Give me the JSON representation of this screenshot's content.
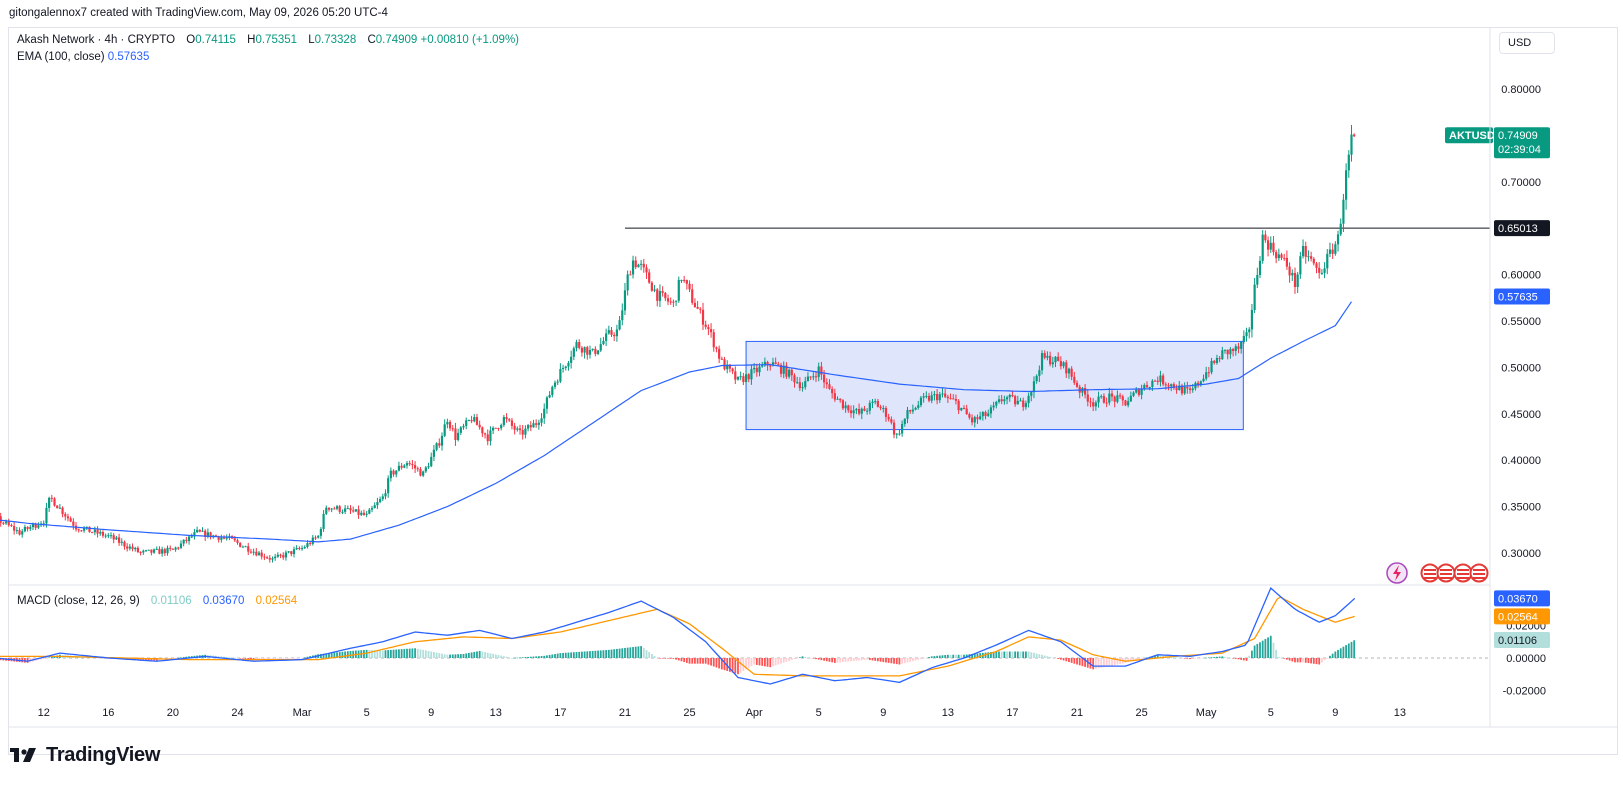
{
  "header": {
    "attribution": "gitongalennox7 created with TradingView.com, May 09, 2026 05:20 UTC-4"
  },
  "legend": {
    "symbol": "Akash Network · 4h · CRYPTO",
    "open_label": "O",
    "open": "0.74115",
    "high_label": "H",
    "high": "0.75351",
    "low_label": "L",
    "low": "0.73328",
    "close_label": "C",
    "close": "0.74909",
    "change": "+0.00810 (+1.09%)",
    "ema_label": "EMA (100, close)",
    "ema_value": "0.57635",
    "macd_label": "MACD (close, 12, 26, 9)",
    "macd_hist": "0.01106",
    "macd_line": "0.03670",
    "macd_signal": "0.02564"
  },
  "currency_button": "USD",
  "price_badges": {
    "ticker": "AKTUSD",
    "last": "0.74909",
    "countdown": "02:39:04",
    "line_level": "0.65013",
    "ema": "0.57635",
    "macd_line": "0.03670",
    "macd_signal": "0.02564",
    "macd_hist": "0.01106"
  },
  "branding": "TradingView",
  "colors": {
    "up": "#089981",
    "down": "#f23645",
    "ema": "#2962ff",
    "signal": "#ff9800",
    "box_fill": "#dbe3fb",
    "box_stroke": "#2962ff",
    "line": "#131722",
    "hist_up_strong": "#26a69a",
    "hist_up_weak": "#b2dfdb",
    "hist_dn_strong": "#ff5252",
    "hist_dn_weak": "#ffcdd2"
  },
  "chart_data": [
    {
      "type": "candlestick",
      "title": "Akash Network · 4h · CRYPTO",
      "y_scale": "linear",
      "ylim": [
        0.27,
        0.81
      ],
      "y_ticks": [
        0.3,
        0.35,
        0.4,
        0.45,
        0.5,
        0.55,
        0.6,
        0.7,
        0.8
      ],
      "y_tick_labels": [
        "0.30000",
        "0.35000",
        "0.40000",
        "0.45000",
        "0.50000",
        "0.55000",
        "0.60000",
        "0.70000",
        "0.80000"
      ],
      "x_tick_labels": [
        "12",
        "16",
        "20",
        "24",
        "Mar",
        "5",
        "9",
        "13",
        "17",
        "21",
        "25",
        "Apr",
        "5",
        "9",
        "13",
        "17",
        "21",
        "25",
        "May",
        "5",
        "9",
        "13"
      ],
      "x_ticks_day": [
        -19,
        -15,
        -11,
        -7,
        -3,
        1,
        5,
        9,
        13,
        17,
        21,
        25,
        29,
        33,
        37,
        41,
        45,
        49,
        53,
        57,
        61,
        65
      ],
      "x_axis_origin_day": "Feb 28 2026",
      "close_keypoints": [
        [
          -30,
          0.312
        ],
        [
          -28.5,
          0.325
        ],
        [
          -26.5,
          0.35
        ],
        [
          -25,
          0.342
        ],
        [
          -22,
          0.338
        ],
        [
          -20.5,
          0.322
        ],
        [
          -19,
          0.335
        ],
        [
          -18.6,
          0.36
        ],
        [
          -17,
          0.328
        ],
        [
          -15,
          0.318
        ],
        [
          -13,
          0.3
        ],
        [
          -11,
          0.303
        ],
        [
          -9.5,
          0.322
        ],
        [
          -7.5,
          0.315
        ],
        [
          -6,
          0.302
        ],
        [
          -4.8,
          0.293
        ],
        [
          -3.5,
          0.302
        ],
        [
          -3,
          0.305
        ],
        [
          -2,
          0.318
        ],
        [
          -1.5,
          0.35
        ],
        [
          0,
          0.345
        ],
        [
          1,
          0.34
        ],
        [
          2,
          0.36
        ],
        [
          2.5,
          0.385
        ],
        [
          3.5,
          0.398
        ],
        [
          4.5,
          0.385
        ],
        [
          5.5,
          0.42
        ],
        [
          6,
          0.445
        ],
        [
          6.5,
          0.425
        ],
        [
          7.5,
          0.445
        ],
        [
          8.5,
          0.425
        ],
        [
          9.5,
          0.445
        ],
        [
          10.5,
          0.428
        ],
        [
          11.5,
          0.44
        ],
        [
          12,
          0.455
        ],
        [
          12.5,
          0.48
        ],
        [
          13,
          0.495
        ],
        [
          13.5,
          0.51
        ],
        [
          14,
          0.525
        ],
        [
          15,
          0.515
        ],
        [
          16,
          0.535
        ],
        [
          16.6,
          0.54
        ],
        [
          17.2,
          0.6
        ],
        [
          17.5,
          0.615
        ],
        [
          18,
          0.608
        ],
        [
          19,
          0.578
        ],
        [
          20,
          0.568
        ],
        [
          20.5,
          0.598
        ],
        [
          21.2,
          0.572
        ],
        [
          22.2,
          0.54
        ],
        [
          23,
          0.505
        ],
        [
          24,
          0.485
        ],
        [
          25,
          0.495
        ],
        [
          26,
          0.505
        ],
        [
          27,
          0.495
        ],
        [
          28,
          0.48
        ],
        [
          29,
          0.498
        ],
        [
          29.6,
          0.476
        ],
        [
          30.5,
          0.46
        ],
        [
          31.5,
          0.45
        ],
        [
          32.5,
          0.462
        ],
        [
          33.3,
          0.448
        ],
        [
          33.8,
          0.425
        ],
        [
          34.5,
          0.45
        ],
        [
          35.5,
          0.465
        ],
        [
          36.5,
          0.47
        ],
        [
          37.5,
          0.462
        ],
        [
          38.5,
          0.442
        ],
        [
          39.5,
          0.45
        ],
        [
          40.5,
          0.468
        ],
        [
          41.6,
          0.46
        ],
        [
          42.3,
          0.48
        ],
        [
          42.8,
          0.51
        ],
        [
          43.6,
          0.508
        ],
        [
          44.4,
          0.498
        ],
        [
          45.2,
          0.475
        ],
        [
          46,
          0.462
        ],
        [
          47,
          0.468
        ],
        [
          48,
          0.462
        ],
        [
          49,
          0.478
        ],
        [
          50,
          0.488
        ],
        [
          51,
          0.48
        ],
        [
          52,
          0.472
        ],
        [
          53,
          0.495
        ],
        [
          54,
          0.515
        ],
        [
          55,
          0.52
        ],
        [
          55.6,
          0.535
        ],
        [
          56,
          0.585
        ],
        [
          56.5,
          0.64
        ],
        [
          57,
          0.63
        ],
        [
          58,
          0.61
        ],
        [
          58.5,
          0.59
        ],
        [
          59,
          0.625
        ],
        [
          59.5,
          0.615
        ],
        [
          60,
          0.6
        ],
        [
          60.6,
          0.62
        ],
        [
          61.2,
          0.64
        ],
        [
          61.6,
          0.7
        ],
        [
          62,
          0.745
        ],
        [
          62.2,
          0.749
        ]
      ],
      "overlays": {
        "ema_100_keypoints": [
          [
            -30,
            0.351
          ],
          [
            -25,
            0.342
          ],
          [
            -20,
            0.332
          ],
          [
            -15,
            0.325
          ],
          [
            -10,
            0.319
          ],
          [
            -5,
            0.315
          ],
          [
            -2,
            0.312
          ],
          [
            0,
            0.315
          ],
          [
            3,
            0.33
          ],
          [
            6,
            0.35
          ],
          [
            9,
            0.375
          ],
          [
            12,
            0.405
          ],
          [
            15,
            0.44
          ],
          [
            18,
            0.475
          ],
          [
            21,
            0.495
          ],
          [
            23,
            0.502
          ],
          [
            26,
            0.503
          ],
          [
            30,
            0.492
          ],
          [
            34,
            0.482
          ],
          [
            38,
            0.476
          ],
          [
            42,
            0.474
          ],
          [
            46,
            0.476
          ],
          [
            50,
            0.477
          ],
          [
            53,
            0.482
          ],
          [
            55,
            0.488
          ],
          [
            57,
            0.51
          ],
          [
            59,
            0.528
          ],
          [
            61,
            0.545
          ],
          [
            62.2,
            0.576
          ]
        ],
        "horizontal_line": {
          "value": 0.65013,
          "from_day": 17,
          "to_day": "right-edge"
        },
        "range_box": {
          "from_day": 24.5,
          "to_day": 55.3,
          "top": 0.528,
          "bottom": 0.433
        }
      }
    },
    {
      "type": "macd",
      "title": "MACD (close, 12, 26, 9)",
      "ylim": [
        -0.028,
        0.045
      ],
      "y_ticks": [
        -0.02,
        0.0,
        0.02
      ],
      "y_tick_labels": [
        "-0.02000",
        "0.00000",
        "0.02000"
      ],
      "macd_keypoints": [
        [
          -30,
          0.0
        ],
        [
          -27,
          0.005
        ],
        [
          -25,
          0.003
        ],
        [
          -22,
          0.0
        ],
        [
          -20,
          -0.002
        ],
        [
          -18,
          0.003
        ],
        [
          -15,
          0.0
        ],
        [
          -12,
          -0.002
        ],
        [
          -9,
          0.001
        ],
        [
          -6,
          -0.002
        ],
        [
          -3,
          -0.001
        ],
        [
          0,
          0.006
        ],
        [
          2,
          0.01
        ],
        [
          4,
          0.016
        ],
        [
          6,
          0.014
        ],
        [
          8,
          0.017
        ],
        [
          10,
          0.012
        ],
        [
          12,
          0.016
        ],
        [
          14,
          0.022
        ],
        [
          16,
          0.028
        ],
        [
          18,
          0.035
        ],
        [
          20,
          0.025
        ],
        [
          22,
          0.01
        ],
        [
          24,
          -0.012
        ],
        [
          26,
          -0.016
        ],
        [
          28,
          -0.01
        ],
        [
          30,
          -0.014
        ],
        [
          32,
          -0.012
        ],
        [
          34,
          -0.015
        ],
        [
          36,
          -0.006
        ],
        [
          38,
          0.0
        ],
        [
          40,
          0.008
        ],
        [
          42,
          0.017
        ],
        [
          44,
          0.01
        ],
        [
          46,
          -0.005
        ],
        [
          48,
          -0.005
        ],
        [
          50,
          0.002
        ],
        [
          52,
          0.001
        ],
        [
          54,
          0.004
        ],
        [
          55.5,
          0.008
        ],
        [
          57,
          0.043
        ],
        [
          58.5,
          0.03
        ],
        [
          60,
          0.022
        ],
        [
          61,
          0.026
        ],
        [
          62.2,
          0.0367
        ]
      ],
      "signal_keypoints": [
        [
          -30,
          0.0
        ],
        [
          -26,
          0.004
        ],
        [
          -22,
          0.001
        ],
        [
          -18,
          0.001
        ],
        [
          -14,
          0.0
        ],
        [
          -10,
          -0.001
        ],
        [
          -6,
          -0.001
        ],
        [
          -2,
          -0.001
        ],
        [
          1,
          0.003
        ],
        [
          4,
          0.01
        ],
        [
          7,
          0.013
        ],
        [
          10,
          0.012
        ],
        [
          13,
          0.016
        ],
        [
          16,
          0.023
        ],
        [
          19,
          0.03
        ],
        [
          21,
          0.021
        ],
        [
          23,
          0.006
        ],
        [
          25,
          -0.01
        ],
        [
          28,
          -0.011
        ],
        [
          31,
          -0.011
        ],
        [
          34,
          -0.011
        ],
        [
          37,
          -0.005
        ],
        [
          40,
          0.004
        ],
        [
          42,
          0.013
        ],
        [
          44,
          0.011
        ],
        [
          46,
          0.002
        ],
        [
          48,
          -0.002
        ],
        [
          51,
          0.001
        ],
        [
          54,
          0.003
        ],
        [
          56,
          0.012
        ],
        [
          57.5,
          0.038
        ],
        [
          59,
          0.03
        ],
        [
          61,
          0.022
        ],
        [
          62.2,
          0.0256
        ]
      ]
    }
  ]
}
